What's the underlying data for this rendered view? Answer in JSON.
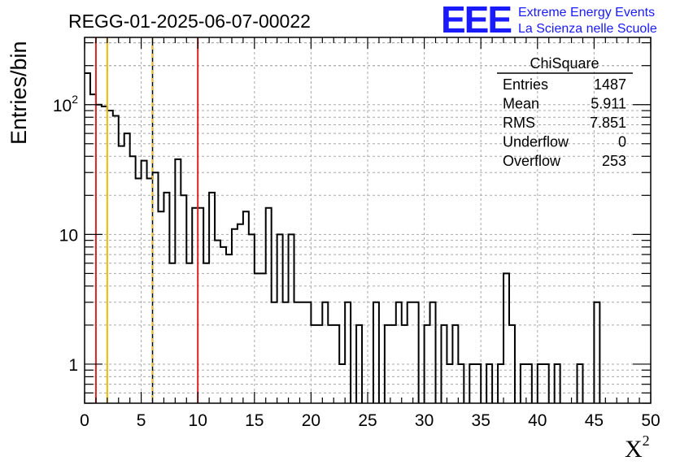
{
  "chart_data": {
    "type": "histogram",
    "title": "REGG-01-2025-06-07-00022",
    "xlabel": "X",
    "xlabel_superscript": "2",
    "ylabel": "Entries/bin",
    "xlim": [
      0,
      50
    ],
    "ylim": [
      0.5,
      330
    ],
    "yscale": "log",
    "grid": true,
    "bin_width": 0.5,
    "x_ticks": [
      0,
      5,
      10,
      15,
      20,
      25,
      30,
      35,
      40,
      45,
      50
    ],
    "y_ticks": [
      {
        "value": 1,
        "label": "1",
        "exp": ""
      },
      {
        "value": 10,
        "label": "10",
        "exp": ""
      },
      {
        "value": 100,
        "label": "10",
        "exp": "2"
      }
    ],
    "values": [
      175,
      120,
      100,
      97,
      90,
      82,
      48,
      60,
      40,
      27,
      37,
      27,
      30,
      15,
      21,
      6,
      38,
      20,
      6,
      16,
      16,
      6,
      21,
      9,
      8,
      7,
      11,
      12,
      15,
      10,
      5,
      5,
      16,
      3,
      10,
      3,
      10,
      3,
      3,
      3,
      2,
      2,
      3,
      2,
      2,
      1,
      3,
      0,
      2,
      0,
      0,
      3,
      0,
      2,
      2,
      3,
      2,
      3,
      3,
      0,
      2,
      3,
      0,
      2,
      1,
      2,
      1,
      0,
      1,
      1,
      0,
      1,
      0,
      1,
      5,
      2,
      0,
      1,
      1,
      0,
      1,
      1,
      0,
      1,
      0,
      0,
      0,
      1,
      0,
      0,
      3,
      0,
      0,
      0,
      0,
      0,
      0,
      0,
      0,
      0
    ],
    "vertical_lines": [
      {
        "x": 1,
        "color": "#dd2222",
        "dashed": false
      },
      {
        "x": 2,
        "color": "#f0b800",
        "dashed": false
      },
      {
        "x": 6,
        "color": "#f0b800",
        "dashed": true
      },
      {
        "x": 10,
        "color": "#dd2222",
        "dashed": false
      }
    ],
    "stats_box": {
      "title": "ChiSquare",
      "rows": [
        {
          "label": "Entries",
          "value": "1487"
        },
        {
          "label": "Mean",
          "value": "5.911"
        },
        {
          "label": "RMS",
          "value": "7.851"
        },
        {
          "label": "Underflow",
          "value": "0"
        },
        {
          "label": "Overflow",
          "value": "253"
        }
      ]
    }
  },
  "branding": {
    "logo": "EEE",
    "line1": "Extreme Energy Events",
    "line2": "La Scienza nelle Scuole",
    "color": "#1a1aff"
  }
}
